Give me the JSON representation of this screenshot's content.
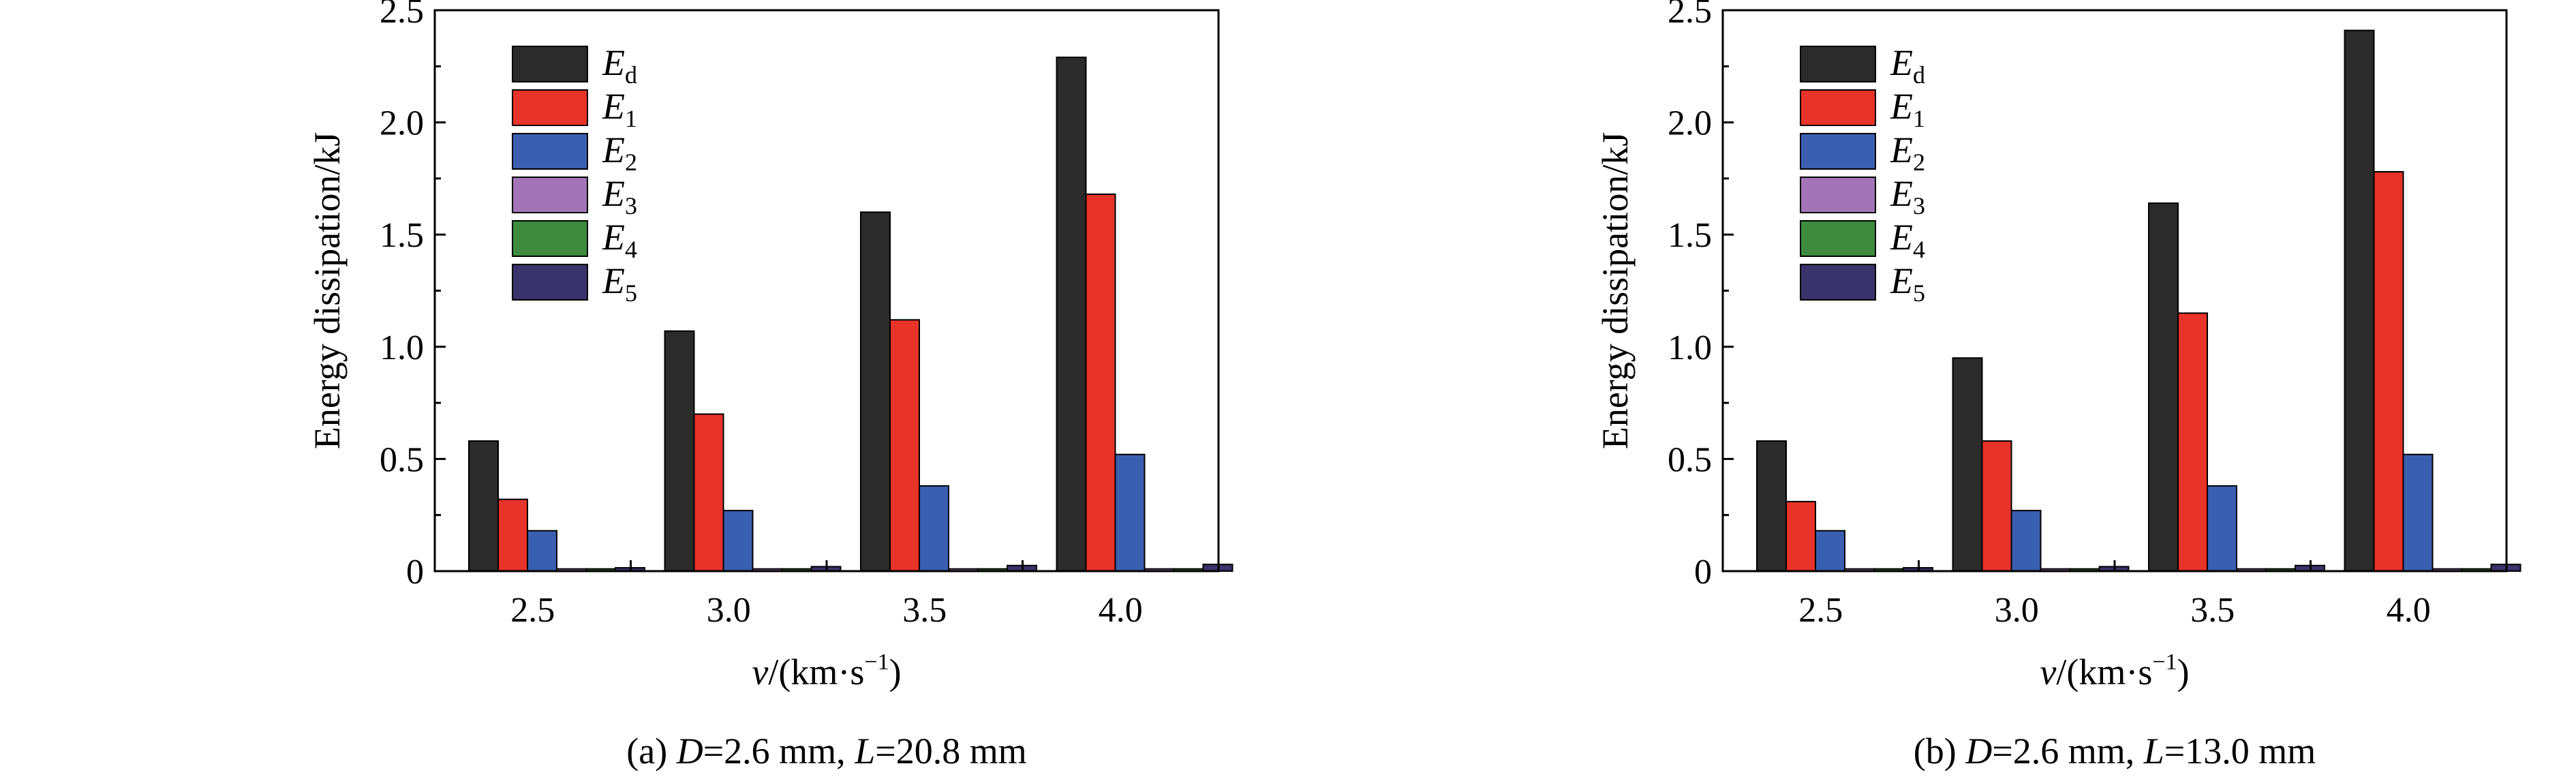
{
  "colors": {
    "Ed": "#2b2b2b",
    "E1": "#e8332a",
    "E2": "#3b5fb0",
    "E3": "#a474b8",
    "E4": "#3e8a3e",
    "E5": "#39326b"
  },
  "chart_data": [
    {
      "type": "bar",
      "panel": "a",
      "caption": {
        "prefix": "(a) ",
        "D_symbol": "D",
        "D_value": "=2.6 mm, ",
        "L_symbol": "L",
        "L_value": "=20.8 mm"
      },
      "xlabel": {
        "symbol": "v",
        "text": "/(km·s",
        "sup": "−1",
        "close": ")"
      },
      "ylabel": "Energy dissipation/kJ",
      "ylim": [
        0,
        2.5
      ],
      "yticks": [
        "0",
        "0.5",
        "1.0",
        "1.5",
        "2.0",
        "2.5"
      ],
      "categories": [
        "2.5",
        "3.0",
        "3.5",
        "4.0"
      ],
      "legend_position": "top-left",
      "series": [
        {
          "key": "Ed",
          "name": "E",
          "sub": "d",
          "values": [
            0.58,
            1.07,
            1.6,
            2.29
          ]
        },
        {
          "key": "E1",
          "name": "E",
          "sub": "1",
          "values": [
            0.32,
            0.7,
            1.12,
            1.68
          ]
        },
        {
          "key": "E2",
          "name": "E",
          "sub": "2",
          "values": [
            0.18,
            0.27,
            0.38,
            0.52
          ]
        },
        {
          "key": "E3",
          "name": "E",
          "sub": "3",
          "values": [
            0.01,
            0.01,
            0.01,
            0.01
          ]
        },
        {
          "key": "E4",
          "name": "E",
          "sub": "4",
          "values": [
            0.01,
            0.01,
            0.01,
            0.01
          ]
        },
        {
          "key": "E5",
          "name": "E",
          "sub": "5",
          "values": [
            0.015,
            0.02,
            0.025,
            0.03
          ]
        }
      ]
    },
    {
      "type": "bar",
      "panel": "b",
      "caption": {
        "prefix": "(b) ",
        "D_symbol": "D",
        "D_value": "=2.6 mm, ",
        "L_symbol": "L",
        "L_value": "=13.0 mm"
      },
      "xlabel": {
        "symbol": "v",
        "text": "/(km·s",
        "sup": "−1",
        "close": ")"
      },
      "ylabel": "Energy dissipation/kJ",
      "ylim": [
        0,
        2.5
      ],
      "yticks": [
        "0",
        "0.5",
        "1.0",
        "1.5",
        "2.0",
        "2.5"
      ],
      "categories": [
        "2.5",
        "3.0",
        "3.5",
        "4.0"
      ],
      "legend_position": "top-left",
      "series": [
        {
          "key": "Ed",
          "name": "E",
          "sub": "d",
          "values": [
            0.58,
            0.95,
            1.64,
            2.41
          ]
        },
        {
          "key": "E1",
          "name": "E",
          "sub": "1",
          "values": [
            0.31,
            0.58,
            1.15,
            1.78
          ]
        },
        {
          "key": "E2",
          "name": "E",
          "sub": "2",
          "values": [
            0.18,
            0.27,
            0.38,
            0.52
          ]
        },
        {
          "key": "E3",
          "name": "E",
          "sub": "3",
          "values": [
            0.01,
            0.01,
            0.01,
            0.01
          ]
        },
        {
          "key": "E4",
          "name": "E",
          "sub": "4",
          "values": [
            0.01,
            0.01,
            0.01,
            0.01
          ]
        },
        {
          "key": "E5",
          "name": "E",
          "sub": "5",
          "values": [
            0.015,
            0.02,
            0.025,
            0.03
          ]
        }
      ]
    }
  ]
}
